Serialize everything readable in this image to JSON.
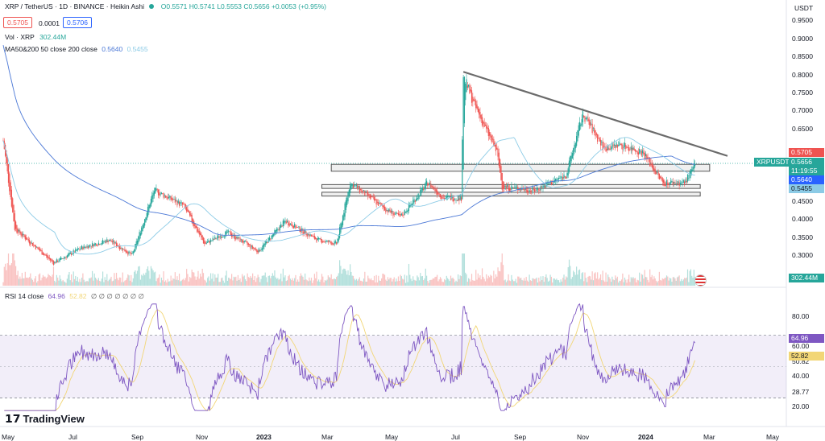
{
  "header": {
    "symbol": "XRP / TetherUS · 1D · BINANCE · Heikin Ashi",
    "o": "O0.5571",
    "h": "H0.5741",
    "l": "L0.5553",
    "c": "C0.5656",
    "chg": "+0.0053 (+0.95%)",
    "sell": "0.5705",
    "spread": "0.0001",
    "buy": "0.5706",
    "vol_label": "Vol · XRP",
    "vol_value": "302.44M",
    "ma_label": "MA50&200 50 close 200 close",
    "ma50": "0.5640",
    "ma200": "0.5455",
    "currency": "USDT"
  },
  "rsi_header": {
    "label": "RSI 14 close",
    "v1": "64.96",
    "v2": "52.82",
    "rest": "∅ ∅ ∅ ∅ ∅ ∅ ∅"
  },
  "price_axis": [
    "0.9500",
    "0.9000",
    "0.8500",
    "0.8000",
    "0.7500",
    "0.7000",
    "0.6500",
    "0.4500",
    "0.4000",
    "0.3500",
    "0.3000"
  ],
  "rsi_axis": [
    "80.00",
    "60.00",
    "50.82",
    "40.00",
    "28.77",
    "20.00"
  ],
  "time_axis": [
    "May",
    "Jul",
    "Sep",
    "Nov",
    "2023",
    "Mar",
    "May",
    "Jul",
    "Sep",
    "Nov",
    "2024",
    "Mar",
    "May"
  ],
  "tags": {
    "p1": "0.5705",
    "pair": "XRPUSDT",
    "p2": "0.5656",
    "timer": "11:19:55",
    "ma50": "0.5640",
    "ma200": "0.5455",
    "vol": "302.44M",
    "rsi": "64.96",
    "rsi_ma": "52.82"
  },
  "brand": "TradingView",
  "colors": {
    "up": "#26a69a",
    "down": "#ef5350",
    "ma50": "#4b78d6",
    "ma200": "#8ccbe6",
    "rsi": "#7e57c2",
    "rsi_ma": "#f2d676",
    "trend": "#6b6b6b"
  },
  "chart_data": {
    "type": "candlestick",
    "symbol": "XRPUSDT",
    "overlays": [
      "MA50",
      "MA200",
      "volume",
      "RSI 14"
    ],
    "series": [
      {
        "name": "MA50",
        "values": [
          0.564
        ]
      },
      {
        "name": "MA200",
        "values": [
          0.5455
        ]
      }
    ],
    "price_path": [
      [
        "2022-05-01",
        0.63
      ],
      [
        "2022-05-12",
        0.4
      ],
      [
        "2022-06-18",
        0.31
      ],
      [
        "2022-07-15",
        0.35
      ],
      [
        "2022-08-10",
        0.37
      ],
      [
        "2022-09-01",
        0.33
      ],
      [
        "2022-09-22",
        0.5
      ],
      [
        "2022-10-20",
        0.46
      ],
      [
        "2022-11-09",
        0.36
      ],
      [
        "2022-12-01",
        0.39
      ],
      [
        "2022-12-30",
        0.34
      ],
      [
        "2023-01-25",
        0.42
      ],
      [
        "2023-02-25",
        0.37
      ],
      [
        "2023-03-15",
        0.36
      ],
      [
        "2023-03-28",
        0.52
      ],
      [
        "2023-05-01",
        0.45
      ],
      [
        "2023-05-15",
        0.43
      ],
      [
        "2023-06-10",
        0.52
      ],
      [
        "2023-06-25",
        0.48
      ],
      [
        "2023-07-12",
        0.48
      ],
      [
        "2023-07-14",
        0.8
      ],
      [
        "2023-07-25",
        0.72
      ],
      [
        "2023-08-15",
        0.6
      ],
      [
        "2023-08-20",
        0.51
      ],
      [
        "2023-09-20",
        0.5
      ],
      [
        "2023-10-20",
        0.54
      ],
      [
        "2023-11-05",
        0.7
      ],
      [
        "2023-11-25",
        0.61
      ],
      [
        "2023-12-10",
        0.62
      ],
      [
        "2024-01-01",
        0.6
      ],
      [
        "2024-01-20",
        0.52
      ],
      [
        "2024-02-10",
        0.52
      ],
      [
        "2024-02-20",
        0.5656
      ]
    ],
    "trendline": [
      [
        "2023-07-14",
        0.81
      ],
      [
        "2024-03-22",
        0.59
      ]
    ],
    "support_zones": [
      [
        0.55,
        0.568
      ],
      [
        0.505,
        0.515
      ],
      [
        0.485,
        0.495
      ]
    ],
    "rsi_last": 64.96,
    "rsi_ma_last": 52.82,
    "ylim_price": [
      0.28,
      0.96
    ],
    "ylim_rsi": [
      18,
      95
    ]
  }
}
